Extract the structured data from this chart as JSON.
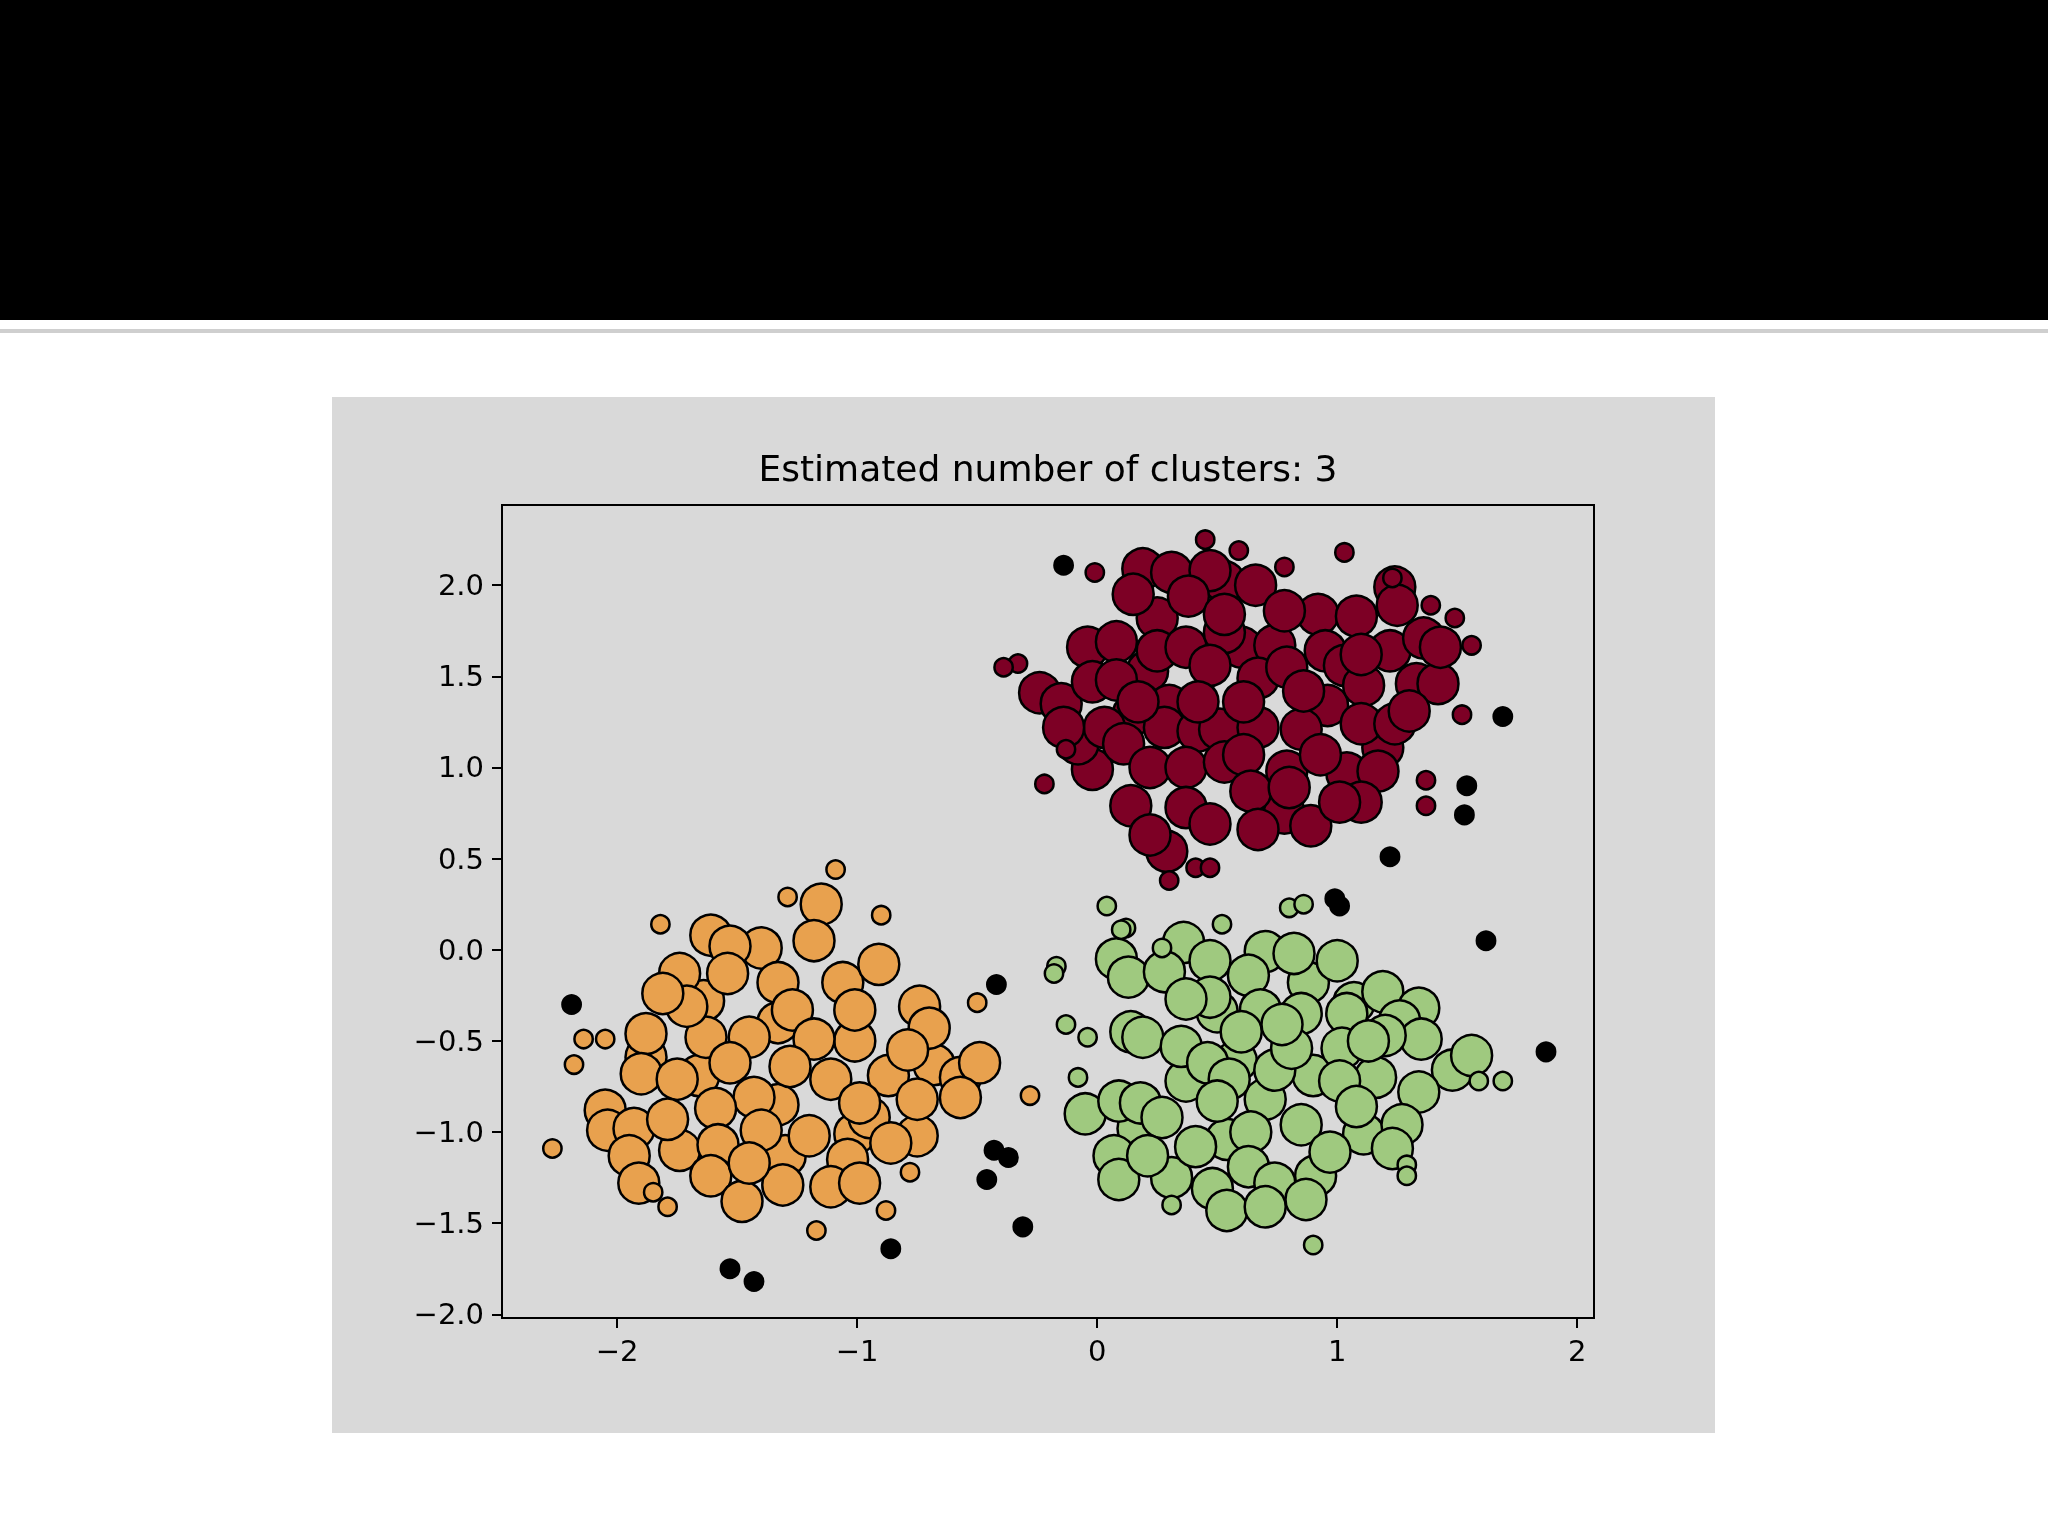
{
  "chart_data": {
    "type": "bubble",
    "title": "Estimated number of clusters: 3",
    "marker": "circle",
    "xlim": [
      -2.48,
      2.07
    ],
    "xticks": [
      {
        "value": -2,
        "label": "−2"
      },
      {
        "value": -1,
        "label": "−1"
      },
      0,
      1,
      2
    ],
    "ylim": [
      -2.02,
      2.44
    ],
    "yticks": [
      {
        "value": -2,
        "label": "−2.0"
      },
      {
        "value": -1.5,
        "label": "−1.5"
      },
      {
        "value": -1,
        "label": "−1.0"
      },
      {
        "value": -0.5,
        "label": "−0.5"
      },
      {
        "value": 0,
        "label": "0.0"
      },
      0.5,
      {
        "value": 1,
        "label": "1.0"
      },
      1.5,
      {
        "value": 2,
        "label": "2.0"
      }
    ],
    "series": [
      {
        "color": "#7d0025",
        "x": [
          0.25,
          -0.04,
          0.6,
          0.21,
          0.15,
          -0.02,
          1.04,
          0.78,
          1.19,
          0.53,
          0.19,
          0.31,
          0.47,
          0.66,
          0.15,
          0.38,
          1.24,
          1.25,
          0.08,
          0.25,
          0.37,
          0.53,
          0.74,
          0.92,
          1.08,
          1.22,
          1.36,
          0.95,
          1.03,
          -0.24,
          -0.15,
          -0.02,
          0.08,
          0.3,
          0.47,
          0.67,
          0.79,
          0.96,
          1.11,
          1.33,
          1.42,
          -0.08,
          0.03,
          0.11,
          0.28,
          0.42,
          0.51,
          0.67,
          0.85,
          1.1,
          1.24,
          1.3,
          0.14,
          0.22,
          0.37,
          0.53,
          0.61,
          0.79,
          0.93,
          1.17,
          1.1,
          0.29,
          0.37,
          0.47,
          0.64,
          0.67,
          0.8,
          0.89,
          1.01,
          0.17,
          0.61,
          0.86,
          0.42,
          -0.14,
          1.43,
          0.53,
          0.78,
          1.1,
          0.22
        ],
        "values": [
          1.82,
          1.66,
          1.66,
          1.53,
          1.29,
          0.99,
          0.97,
          0.75,
          1.11,
          2.02,
          2.09,
          2.07,
          2.08,
          2.0,
          1.95,
          1.94,
          1.99,
          1.89,
          1.69,
          1.64,
          1.66,
          1.74,
          1.67,
          1.84,
          1.83,
          1.64,
          1.71,
          1.64,
          1.56,
          1.41,
          1.35,
          1.47,
          1.48,
          1.34,
          1.56,
          1.49,
          1.55,
          1.34,
          1.45,
          1.46,
          1.46,
          1.13,
          1.22,
          1.13,
          1.22,
          1.2,
          1.21,
          1.22,
          1.21,
          1.24,
          1.24,
          1.31,
          0.79,
          1.0,
          1.0,
          1.03,
          1.07,
          0.98,
          1.07,
          0.98,
          0.81,
          0.54,
          0.78,
          0.69,
          0.87,
          0.66,
          0.89,
          0.68,
          0.81,
          1.36,
          1.36,
          1.42,
          1.36,
          1.22,
          1.66,
          1.84,
          1.86,
          1.62,
          0.63
        ],
        "sizes": [
          1,
          1,
          1,
          1,
          1,
          1,
          1,
          1,
          1,
          1,
          1,
          1,
          1,
          1,
          1,
          1,
          1,
          1,
          1,
          1,
          1,
          1,
          1,
          1,
          1,
          1,
          1,
          1,
          1,
          1,
          1,
          1,
          1,
          1,
          1,
          1,
          1,
          1,
          1,
          1,
          1,
          1,
          1,
          1,
          1,
          1,
          1,
          1,
          1,
          1,
          1,
          1,
          1,
          1,
          1,
          1,
          1,
          1,
          1,
          1,
          1,
          1,
          1,
          1,
          1,
          1,
          1,
          1,
          1,
          1,
          1,
          1,
          1,
          1,
          1,
          1,
          1,
          1,
          1
        ]
      },
      {
        "color": "#7d0025",
        "x": [
          -0.01,
          0.45,
          0.59,
          0.78,
          1.03,
          1.23,
          1.39,
          1.49,
          1.56,
          1.52,
          1.37,
          1.37,
          -0.22,
          -0.13,
          -0.33,
          -0.39,
          0.3,
          0.41,
          0.47
        ],
        "values": [
          2.07,
          2.25,
          2.19,
          2.1,
          2.18,
          2.04,
          1.89,
          1.82,
          1.67,
          1.29,
          0.93,
          0.79,
          0.91,
          1.1,
          1.57,
          1.55,
          0.38,
          0.45,
          0.45
        ],
        "sizes": [
          0.2,
          0.2,
          0.2,
          0.2,
          0.2,
          0.2,
          0.2,
          0.2,
          0.2,
          0.2,
          0.2,
          0.2,
          0.2,
          0.2,
          0.2,
          0.2,
          0.2,
          0.2,
          0.2
        ]
      },
      {
        "color": "#e8a14e",
        "x": [
          -1.64,
          -1.33,
          -1.01,
          -1.66,
          -1.33,
          -1.01,
          -0.87,
          -1.74,
          -1.4,
          -1.06,
          -1.88,
          -0.68,
          -1.3,
          -1.15,
          -1.61,
          -1.53,
          -1.18,
          -0.91,
          -1.74,
          -1.54,
          -1.33,
          -1.27,
          -1.01,
          -0.74,
          -0.7,
          -1.88,
          -1.63,
          -1.45,
          -1.18,
          -0.79,
          -0.57,
          -0.49,
          -1.9,
          -1.11,
          -1.75,
          -1.43,
          -1.59,
          -2.05,
          -2.04,
          -1.93,
          -1.79,
          -0.95,
          -0.99,
          -1.2,
          -1.58,
          -1.4,
          -1.95,
          -1.04,
          -0.75,
          -1.91,
          -1.61,
          -1.48,
          -1.31,
          -1.11,
          -0.99,
          -1.45,
          -0.86,
          -1.71,
          -0.57,
          -0.75,
          -1.28,
          -1.53,
          -1.81
        ],
        "values": [
          -0.28,
          -0.4,
          -0.5,
          -0.69,
          -0.85,
          -1.01,
          -0.69,
          -1.1,
          0.01,
          -0.18,
          -0.59,
          -0.63,
          -1.13,
          0.25,
          0.08,
          0.02,
          0.05,
          -0.08,
          -0.13,
          -0.13,
          -0.18,
          -0.33,
          -0.33,
          -0.31,
          -0.43,
          -0.46,
          -0.48,
          -0.48,
          -0.49,
          -0.55,
          -0.7,
          -0.62,
          -0.68,
          -0.71,
          -0.71,
          -0.81,
          -0.87,
          -0.88,
          -0.99,
          -0.98,
          -0.93,
          -0.92,
          -0.84,
          -1.02,
          -1.07,
          -0.99,
          -1.13,
          -1.15,
          -1.02,
          -1.28,
          -1.24,
          -1.38,
          -1.29,
          -1.3,
          -1.28,
          -1.17,
          -1.06,
          -0.31,
          -0.81,
          -0.82,
          -0.64,
          -0.62,
          -0.24
        ],
        "sizes": [
          1,
          1,
          1,
          1,
          1,
          1,
          1,
          1,
          1,
          1,
          1,
          1,
          1,
          1,
          1,
          1,
          1,
          1,
          1,
          1,
          1,
          1,
          1,
          1,
          1,
          1,
          1,
          1,
          1,
          1,
          1,
          1,
          1,
          1,
          1,
          1,
          1,
          1,
          1,
          1,
          1,
          1,
          1,
          1,
          1,
          1,
          1,
          1,
          1,
          1,
          1,
          1,
          1,
          1,
          1,
          1,
          1,
          1,
          1,
          1,
          1,
          1,
          1
        ]
      },
      {
        "color": "#e8a14e",
        "x": [
          -1.09,
          -1.29,
          -0.9,
          -1.82,
          -2.14,
          -2.05,
          -2.18,
          -2.27,
          -0.5,
          -0.28,
          -0.78,
          -0.88,
          -1.17,
          -1.85,
          -1.79
        ],
        "values": [
          0.44,
          0.29,
          0.19,
          0.14,
          -0.49,
          -0.49,
          -0.63,
          -1.09,
          -0.29,
          -0.8,
          -1.22,
          -1.43,
          -1.54,
          -1.33,
          -1.41
        ],
        "sizes": [
          0.2,
          0.2,
          0.2,
          0.2,
          0.2,
          0.2,
          0.2,
          0.2,
          0.2,
          0.2,
          0.2,
          0.2,
          0.2,
          0.2,
          0.2
        ]
      },
      {
        "color": "#9fc97f",
        "x": [
          0.37,
          0.17,
          0.31,
          0.7,
          1.11,
          0.9,
          0.58,
          0.5,
          1.07,
          0.88,
          0.54,
          0.08,
          0.13,
          0.36,
          0.28,
          0.47,
          0.7,
          0.82,
          1.0,
          0.63,
          0.47,
          0.37,
          0.68,
          0.85,
          1.04,
          1.19,
          1.34,
          1.26,
          1.35,
          0.14,
          0.19,
          0.35,
          0.46,
          0.55,
          0.74,
          0.81,
          1.02,
          1.16,
          1.2,
          1.48,
          1.56,
          1.34,
          -0.05,
          0.09,
          0.18,
          0.27,
          0.5,
          0.64,
          0.85,
          1.01,
          1.08,
          1.27,
          1.23,
          0.07,
          0.09,
          0.21,
          0.41,
          0.48,
          0.63,
          0.74,
          0.54,
          0.7,
          0.91,
          0.97,
          0.87,
          0.6,
          0.77,
          1.13
        ],
        "values": [
          -0.72,
          -0.98,
          -1.25,
          -0.82,
          -1.01,
          -0.69,
          -0.61,
          -0.34,
          -0.29,
          -0.18,
          -1.04,
          -0.05,
          -0.15,
          0.04,
          -0.12,
          -0.06,
          -0.01,
          -0.02,
          -0.06,
          -0.14,
          -0.26,
          -0.27,
          -0.33,
          -0.35,
          -0.35,
          -0.23,
          -0.32,
          -0.39,
          -0.49,
          -0.45,
          -0.48,
          -0.53,
          -0.62,
          -0.71,
          -0.66,
          -0.54,
          -0.54,
          -0.7,
          -0.47,
          -0.66,
          -0.58,
          -0.78,
          -0.9,
          -0.83,
          -0.84,
          -0.92,
          -0.83,
          -1.0,
          -0.96,
          -0.72,
          -0.86,
          -0.96,
          -1.09,
          -1.13,
          -1.26,
          -1.13,
          -1.08,
          -1.31,
          -1.19,
          -1.28,
          -1.43,
          -1.41,
          -1.24,
          -1.11,
          -1.37,
          -0.45,
          -0.41,
          -0.5
        ],
        "sizes": [
          1,
          1,
          1,
          1,
          1,
          1,
          1,
          1,
          1,
          1,
          1,
          1,
          1,
          1,
          1,
          1,
          1,
          1,
          1,
          1,
          1,
          1,
          1,
          1,
          1,
          1,
          1,
          1,
          1,
          1,
          1,
          1,
          1,
          1,
          1,
          1,
          1,
          1,
          1,
          1,
          1,
          1,
          1,
          1,
          1,
          1,
          1,
          1,
          1,
          1,
          1,
          1,
          1,
          1,
          1,
          1,
          1,
          1,
          1,
          1,
          1,
          1,
          1,
          1,
          1,
          1,
          1,
          1
        ]
      },
      {
        "color": "#9fc97f",
        "x": [
          0.04,
          0.12,
          0.1,
          0.52,
          0.8,
          0.86,
          0.27,
          -0.17,
          -0.18,
          -0.13,
          -0.04,
          -0.08,
          1.59,
          1.69,
          1.29,
          1.29,
          0.31,
          0.9
        ],
        "values": [
          0.24,
          0.12,
          0.11,
          0.14,
          0.23,
          0.25,
          0.01,
          -0.09,
          -0.13,
          -0.41,
          -0.48,
          -0.7,
          -0.72,
          -0.72,
          -1.18,
          -1.24,
          -1.4,
          -1.62
        ],
        "sizes": [
          0.2,
          0.2,
          0.2,
          0.2,
          0.2,
          0.2,
          0.2,
          0.2,
          0.2,
          0.2,
          0.2,
          0.2,
          0.2,
          0.2,
          0.2,
          0.2,
          0.2,
          0.2
        ]
      },
      {
        "color": "#000000",
        "x": [
          -0.14,
          1.69,
          1.54,
          1.53,
          1.22,
          -2.19,
          -0.42,
          -0.43,
          -0.37,
          -0.46,
          -0.31,
          -0.86,
          -1.53,
          -1.43,
          0.99,
          1.01,
          1.62,
          1.87
        ],
        "values": [
          2.11,
          1.28,
          0.9,
          0.74,
          0.51,
          -0.3,
          -0.19,
          -1.1,
          -1.14,
          -1.26,
          -1.52,
          -1.64,
          -1.75,
          -1.82,
          0.28,
          0.24,
          0.05,
          -0.56
        ],
        "sizes": [
          0.2,
          0.2,
          0.2,
          0.2,
          0.2,
          0.2,
          0.2,
          0.2,
          0.2,
          0.2,
          0.2,
          0.2,
          0.2,
          0.2,
          0.2,
          0.2,
          0.2,
          0.2
        ]
      }
    ]
  }
}
